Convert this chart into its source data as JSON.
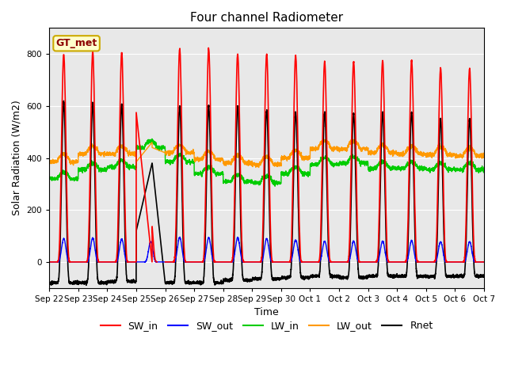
{
  "title": "Four channel Radiometer",
  "xlabel": "Time",
  "ylabel": "Solar Radiation (W/m2)",
  "ylim": [
    -100,
    900
  ],
  "plot_bg_color": "#e8e8e8",
  "annotation_text": "GT_met",
  "annotation_box_color": "#ffffcc",
  "annotation_border_color": "#ccaa00",
  "x_tick_labels": [
    "Sep 22",
    "Sep 23",
    "Sep 24",
    "Sep 25",
    "Sep 26",
    "Sep 27",
    "Sep 28",
    "Sep 29",
    "Sep 30",
    "Oct 1",
    "Oct 2",
    "Oct 3",
    "Oct 4",
    "Oct 5",
    "Oct 6",
    "Oct 7"
  ],
  "legend_entries": [
    "SW_in",
    "SW_out",
    "LW_in",
    "LW_out",
    "Rnet"
  ],
  "legend_colors": [
    "#ff0000",
    "#0000ff",
    "#00cc00",
    "#ff9900",
    "#000000"
  ],
  "n_days": 15,
  "pts_per_day": 288,
  "sw_in_peaks": [
    800,
    810,
    805,
    575,
    820,
    820,
    800,
    800,
    795,
    770,
    770,
    775,
    775,
    745,
    745
  ],
  "sw_out_peaks": [
    90,
    92,
    88,
    78,
    95,
    93,
    93,
    90,
    85,
    80,
    80,
    80,
    82,
    78,
    78
  ],
  "lw_in_day": [
    320,
    355,
    365,
    440,
    385,
    340,
    310,
    305,
    340,
    375,
    380,
    360,
    360,
    355,
    355
  ],
  "lw_out_day": [
    385,
    415,
    415,
    450,
    420,
    395,
    380,
    375,
    400,
    435,
    435,
    420,
    415,
    412,
    408
  ],
  "rnet_peaks": [
    615,
    610,
    605,
    120,
    600,
    600,
    600,
    585,
    575,
    575,
    570,
    575,
    575,
    550,
    550
  ],
  "night_rnet": [
    -80,
    -80,
    -75,
    -80,
    -80,
    -80,
    -70,
    -65,
    -60,
    -55,
    -60,
    -55,
    -55,
    -55,
    -55
  ]
}
